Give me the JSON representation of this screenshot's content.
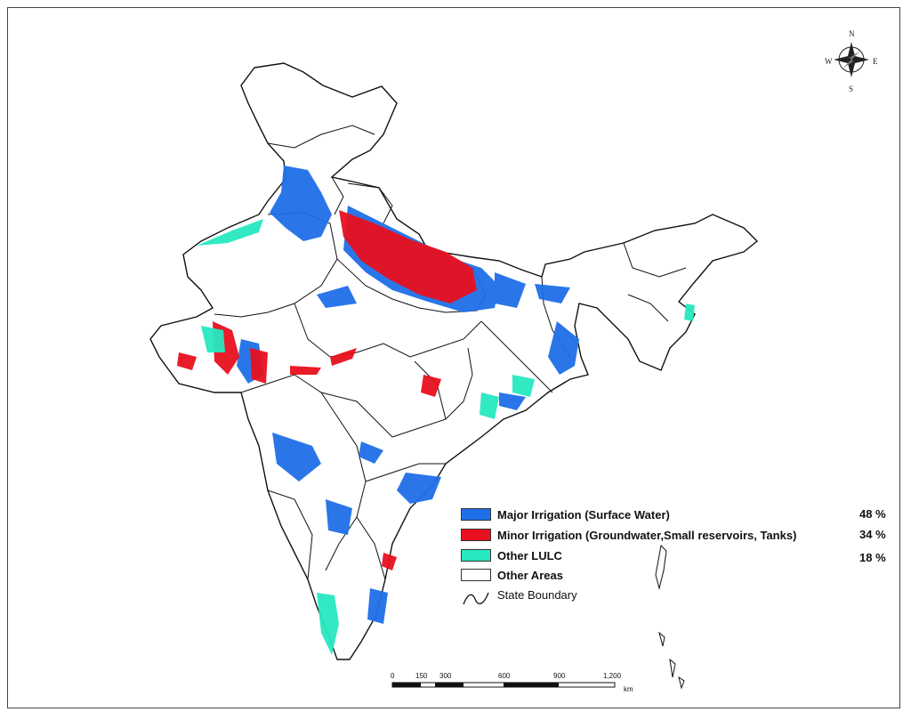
{
  "compass": {
    "n": "N",
    "s": "S",
    "e": "E",
    "w": "W"
  },
  "legend": {
    "items": [
      {
        "label": "Major Irrigation (Surface Water)",
        "percent": "48 %",
        "color": "#1f6fe8"
      },
      {
        "label": "Minor Irrigation (Groundwater,Small reservoirs, Tanks)",
        "percent": "34 %",
        "color": "#e8101e"
      },
      {
        "label": "Other LULC",
        "percent": "18 %",
        "color": "#27e8c0"
      },
      {
        "label": "Other Areas",
        "percent": "",
        "color": "#ffffff"
      }
    ],
    "boundary_label": "State Boundary"
  },
  "scale": {
    "ticks": [
      "0",
      "150",
      "300",
      "600",
      "900",
      "1,200"
    ],
    "unit": "km"
  },
  "colors": {
    "major": "#1f6fe8",
    "minor": "#e8101e",
    "other_lulc": "#27e8c0",
    "boundary": "#111111"
  }
}
